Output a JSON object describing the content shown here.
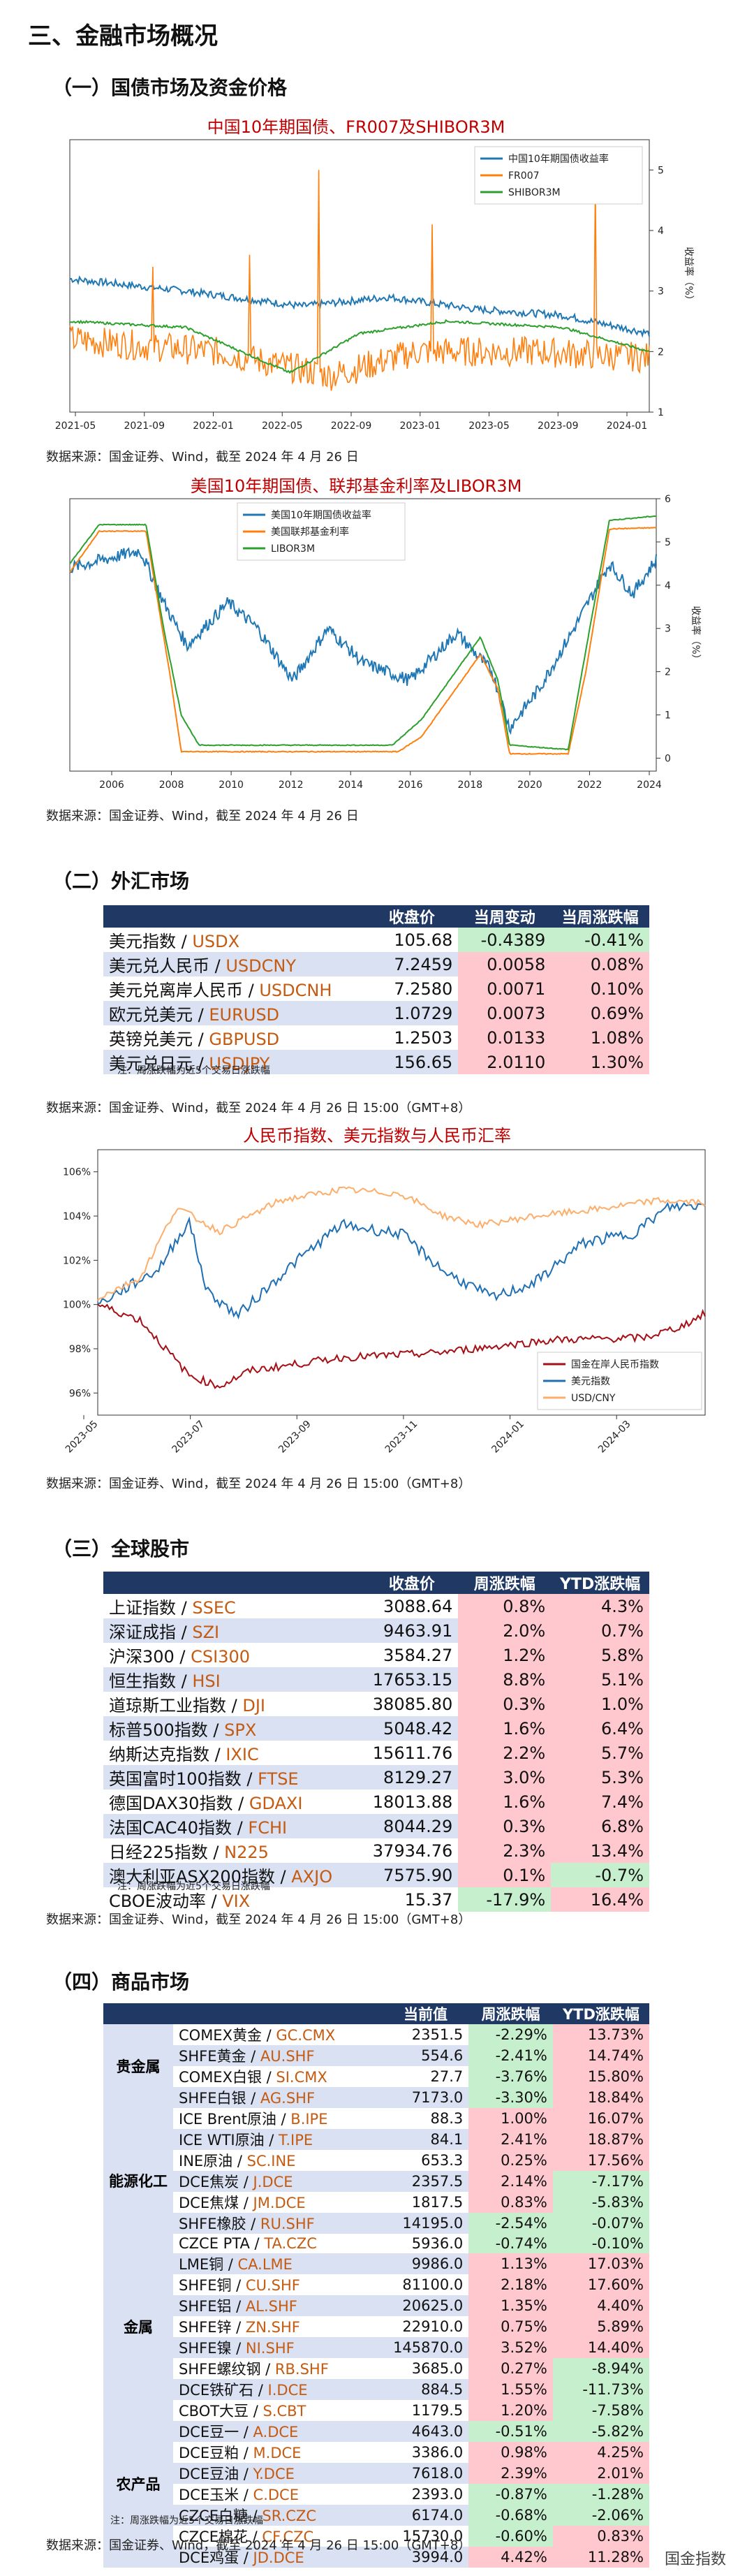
{
  "section_title": "三、金融市场概况",
  "s1_title": "（一）国债市场及资金价格",
  "s2_title": "（二）外汇市场",
  "s3_title": "（三）全球股市",
  "s4_title": "（四）商品市场",
  "source_text": "数据来源：国金证券、Wind，截至 2024 年 4 月 26 日",
  "source_text_time": "数据来源：国金证券、Wind，截至 2024 年 4 月 26 日 15:00（GMT+8）",
  "note_weekly": "注：周涨跌幅为近5个交易日涨跌幅",
  "brand": "国金指数",
  "charts": [
    {
      "title": "中国10年期国债、FR007及SHIBOR3M",
      "ylabel": "收益率（%）",
      "y_ticks": [
        "1",
        "2",
        "3",
        "4",
        "5"
      ],
      "x_ticks": [
        "2021-05",
        "2021-09",
        "2022-01",
        "2022-05",
        "2022-09",
        "2023-01",
        "2023-05",
        "2023-09",
        "2024-01"
      ],
      "legend": [
        "中国10年期国债收益率",
        "FR007",
        "SHIBOR3M"
      ],
      "colors": [
        "#1f77b4",
        "#ff7f0e",
        "#2ca02c"
      ]
    },
    {
      "title": "美国10年期国债、联邦基金利率及LIBOR3M",
      "ylabel": "收益率（%）",
      "y_ticks": [
        "0",
        "1",
        "2",
        "3",
        "4",
        "5",
        "6"
      ],
      "x_ticks": [
        "2006",
        "2008",
        "2010",
        "2012",
        "2014",
        "2016",
        "2018",
        "2020",
        "2022",
        "2024"
      ],
      "legend": [
        "美国10年期国债收益率",
        "美国联邦基金利率",
        "LIBOR3M"
      ],
      "colors": [
        "#1f77b4",
        "#ff7f0e",
        "#2ca02c"
      ]
    },
    {
      "title": "人民币指数、美元指数与人民币汇率",
      "y_ticks": [
        "96%",
        "98%",
        "100%",
        "102%",
        "104%",
        "106%"
      ],
      "x_ticks": [
        "2023-05",
        "2023-07",
        "2023-09",
        "2023-11",
        "2024-01",
        "2024-03"
      ],
      "legend": [
        "国金在岸人民币指数",
        "美元指数",
        "USD/CNY"
      ],
      "colors": [
        "#a50f15",
        "#1f6fb4",
        "#fdae6b"
      ]
    }
  ],
  "fx": {
    "headers": [
      "",
      "收盘价",
      "当周变动",
      "当周涨跌幅"
    ],
    "rows": [
      {
        "name": "美元指数",
        "code": "USDX",
        "close": "105.68",
        "chg": "-0.4389",
        "pct": "-0.41%",
        "sign": "neg"
      },
      {
        "name": "美元兑人民币",
        "code": "USDCNY",
        "close": "7.2459",
        "chg": "0.0058",
        "pct": "0.08%",
        "sign": "pos"
      },
      {
        "name": "美元兑离岸人民币",
        "code": "USDCNH",
        "close": "7.2580",
        "chg": "0.0071",
        "pct": "0.10%",
        "sign": "pos"
      },
      {
        "name": "欧元兑美元",
        "code": "EURUSD",
        "close": "1.0729",
        "chg": "0.0073",
        "pct": "0.69%",
        "sign": "pos"
      },
      {
        "name": "英镑兑美元",
        "code": "GBPUSD",
        "close": "1.2503",
        "chg": "0.0133",
        "pct": "1.08%",
        "sign": "pos"
      },
      {
        "name": "美元兑日元",
        "code": "USDJPY",
        "close": "156.65",
        "chg": "2.0110",
        "pct": "1.30%",
        "sign": "pos"
      }
    ]
  },
  "equity": {
    "headers": [
      "",
      "收盘价",
      "周涨跌幅",
      "YTD涨跌幅"
    ],
    "rows": [
      {
        "name": "上证指数",
        "code": "SSEC",
        "close": "3088.64",
        "wk": "0.8%",
        "ytd": "4.3%",
        "ws": "pos",
        "ys": "pos"
      },
      {
        "name": "深证成指",
        "code": "SZI",
        "close": "9463.91",
        "wk": "2.0%",
        "ytd": "0.7%",
        "ws": "pos",
        "ys": "pos"
      },
      {
        "name": "沪深300",
        "code": "CSI300",
        "close": "3584.27",
        "wk": "1.2%",
        "ytd": "5.8%",
        "ws": "pos",
        "ys": "pos"
      },
      {
        "name": "恒生指数",
        "code": "HSI",
        "close": "17653.15",
        "wk": "8.8%",
        "ytd": "5.1%",
        "ws": "pos",
        "ys": "pos"
      },
      {
        "name": "道琼斯工业指数",
        "code": "DJI",
        "close": "38085.80",
        "wk": "0.3%",
        "ytd": "1.0%",
        "ws": "pos",
        "ys": "pos"
      },
      {
        "name": "标普500指数",
        "code": "SPX",
        "close": "5048.42",
        "wk": "1.6%",
        "ytd": "6.4%",
        "ws": "pos",
        "ys": "pos"
      },
      {
        "name": "纳斯达克指数",
        "code": "IXIC",
        "close": "15611.76",
        "wk": "2.2%",
        "ytd": "5.7%",
        "ws": "pos",
        "ys": "pos"
      },
      {
        "name": "英国富时100指数",
        "code": "FTSE",
        "close": "8129.27",
        "wk": "3.0%",
        "ytd": "5.3%",
        "ws": "pos",
        "ys": "pos"
      },
      {
        "name": "德国DAX30指数",
        "code": "GDAXI",
        "close": "18013.88",
        "wk": "1.6%",
        "ytd": "7.4%",
        "ws": "pos",
        "ys": "pos"
      },
      {
        "name": "法国CAC40指数",
        "code": "FCHI",
        "close": "8044.29",
        "wk": "0.3%",
        "ytd": "6.8%",
        "ws": "pos",
        "ys": "pos"
      },
      {
        "name": "日经225指数",
        "code": "N225",
        "close": "37934.76",
        "wk": "2.3%",
        "ytd": "13.4%",
        "ws": "pos",
        "ys": "pos"
      },
      {
        "name": "澳大利亚ASX200指数",
        "code": "AXJO",
        "close": "7575.90",
        "wk": "0.1%",
        "ytd": "-0.7%",
        "ws": "pos",
        "ys": "neg"
      },
      {
        "name": "CBOE波动率",
        "code": "VIX",
        "close": "15.37",
        "wk": "-17.9%",
        "ytd": "16.4%",
        "ws": "neg",
        "ys": "pos"
      }
    ]
  },
  "commodity": {
    "headers": [
      "",
      "",
      "当前值",
      "周涨跌幅",
      "YTD涨跌幅"
    ],
    "groups": [
      {
        "category": "贵金属",
        "rows": [
          {
            "name": "COMEX黄金",
            "code": "GC.CMX",
            "val": "2351.5",
            "wk": "-2.29%",
            "ytd": "13.73%",
            "ws": "neg",
            "ys": "pos"
          },
          {
            "name": "SHFE黄金",
            "code": "AU.SHF",
            "val": "554.6",
            "wk": "-2.41%",
            "ytd": "14.74%",
            "ws": "neg",
            "ys": "pos"
          },
          {
            "name": "COMEX白银",
            "code": "SI.CMX",
            "val": "27.7",
            "wk": "-3.76%",
            "ytd": "15.80%",
            "ws": "neg",
            "ys": "pos"
          },
          {
            "name": "SHFE白银",
            "code": "AG.SHF",
            "val": "7173.0",
            "wk": "-3.30%",
            "ytd": "18.84%",
            "ws": "neg",
            "ys": "pos"
          }
        ]
      },
      {
        "category": "能源化工",
        "rows": [
          {
            "name": "ICE Brent原油",
            "code": "B.IPE",
            "val": "88.3",
            "wk": "1.00%",
            "ytd": "16.07%",
            "ws": "pos",
            "ys": "pos"
          },
          {
            "name": "ICE WTI原油",
            "code": "T.IPE",
            "val": "84.1",
            "wk": "2.41%",
            "ytd": "18.87%",
            "ws": "pos",
            "ys": "pos"
          },
          {
            "name": "INE原油",
            "code": "SC.INE",
            "val": "653.3",
            "wk": "0.25%",
            "ytd": "17.56%",
            "ws": "pos",
            "ys": "pos"
          },
          {
            "name": "DCE焦炭",
            "code": "J.DCE",
            "val": "2357.5",
            "wk": "2.14%",
            "ytd": "-7.17%",
            "ws": "pos",
            "ys": "neg"
          },
          {
            "name": "DCE焦煤",
            "code": "JM.DCE",
            "val": "1817.5",
            "wk": "0.83%",
            "ytd": "-5.83%",
            "ws": "pos",
            "ys": "neg"
          },
          {
            "name": "SHFE橡胶",
            "code": "RU.SHF",
            "val": "14195.0",
            "wk": "-2.54%",
            "ytd": "-0.07%",
            "ws": "neg",
            "ys": "neg"
          },
          {
            "name": "CZCE PTA",
            "code": "TA.CZC",
            "val": "5936.0",
            "wk": "-0.74%",
            "ytd": "-0.10%",
            "ws": "neg",
            "ys": "neg"
          }
        ]
      },
      {
        "category": "金属",
        "rows": [
          {
            "name": "LME铜",
            "code": "CA.LME",
            "val": "9986.0",
            "wk": "1.13%",
            "ytd": "17.03%",
            "ws": "pos",
            "ys": "pos"
          },
          {
            "name": "SHFE铜",
            "code": "CU.SHF",
            "val": "81100.0",
            "wk": "2.18%",
            "ytd": "17.60%",
            "ws": "pos",
            "ys": "pos"
          },
          {
            "name": "SHFE铝",
            "code": "AL.SHF",
            "val": "20625.0",
            "wk": "1.35%",
            "ytd": "4.40%",
            "ws": "pos",
            "ys": "pos"
          },
          {
            "name": "SHFE锌",
            "code": "ZN.SHF",
            "val": "22910.0",
            "wk": "0.75%",
            "ytd": "5.89%",
            "ws": "pos",
            "ys": "pos"
          },
          {
            "name": "SHFE镍",
            "code": "NI.SHF",
            "val": "145870.0",
            "wk": "3.52%",
            "ytd": "14.40%",
            "ws": "pos",
            "ys": "pos"
          },
          {
            "name": "SHFE螺纹钢",
            "code": "RB.SHF",
            "val": "3685.0",
            "wk": "0.27%",
            "ytd": "-8.94%",
            "ws": "pos",
            "ys": "neg"
          },
          {
            "name": "DCE铁矿石",
            "code": "I.DCE",
            "val": "884.5",
            "wk": "1.55%",
            "ytd": "-11.73%",
            "ws": "pos",
            "ys": "neg"
          }
        ]
      },
      {
        "category": "农产品",
        "rows": [
          {
            "name": "CBOT大豆",
            "code": "S.CBT",
            "val": "1179.5",
            "wk": "1.20%",
            "ytd": "-7.58%",
            "ws": "pos",
            "ys": "neg"
          },
          {
            "name": "DCE豆一",
            "code": "A.DCE",
            "val": "4643.0",
            "wk": "-0.51%",
            "ytd": "-5.82%",
            "ws": "neg",
            "ys": "neg"
          },
          {
            "name": "DCE豆粕",
            "code": "M.DCE",
            "val": "3386.0",
            "wk": "0.98%",
            "ytd": "4.25%",
            "ws": "pos",
            "ys": "pos"
          },
          {
            "name": "DCE豆油",
            "code": "Y.DCE",
            "val": "7618.0",
            "wk": "2.39%",
            "ytd": "2.01%",
            "ws": "pos",
            "ys": "pos"
          },
          {
            "name": "DCE玉米",
            "code": "C.DCE",
            "val": "2393.0",
            "wk": "-0.87%",
            "ytd": "-1.28%",
            "ws": "neg",
            "ys": "neg"
          },
          {
            "name": "CZCE白糖",
            "code": "SR.CZC",
            "val": "6174.0",
            "wk": "-0.68%",
            "ytd": "-2.06%",
            "ws": "neg",
            "ys": "neg"
          },
          {
            "name": "CZCE棉花",
            "code": "CF.CZC",
            "val": "15730.0",
            "wk": "-0.60%",
            "ytd": "0.83%",
            "ws": "neg",
            "ys": "pos"
          },
          {
            "name": "DCE鸡蛋",
            "code": "JD.DCE",
            "val": "3994.0",
            "wk": "4.42%",
            "ytd": "11.28%",
            "ws": "pos",
            "ys": "pos"
          }
        ]
      }
    ]
  }
}
